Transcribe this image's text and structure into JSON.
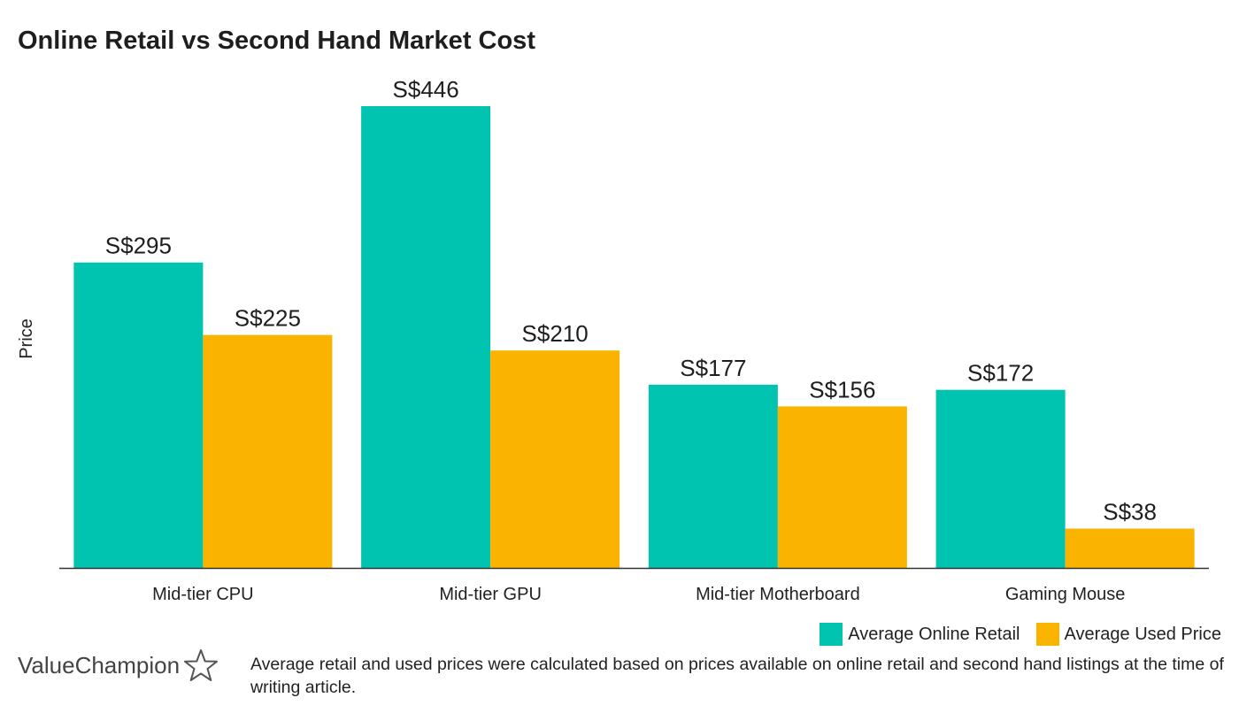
{
  "chart_data": {
    "type": "bar",
    "title": "Online Retail vs Second Hand Market Cost",
    "ylabel": "Price",
    "xlabel": "",
    "categories": [
      "Mid-tier CPU",
      "Mid-tier GPU",
      "Mid-tier Motherboard",
      "Gaming Mouse"
    ],
    "series": [
      {
        "name": "Average Online Retail",
        "values": [
          295,
          446,
          177,
          172
        ],
        "labels": [
          "S$295",
          "S$446",
          "S$177",
          "S$172"
        ],
        "color": "#00c4b0"
      },
      {
        "name": "Average Used Price",
        "values": [
          225,
          210,
          156,
          38
        ],
        "labels": [
          "S$225",
          "S$210",
          "S$156",
          "S$38"
        ],
        "color": "#fab400"
      }
    ],
    "ylim": [
      0,
      446
    ],
    "grid": false,
    "legend": "bottom-right"
  },
  "branding": {
    "logo_text": "ValueChampion",
    "logo_icon": "star-outline-icon"
  },
  "footnote": "Average retail and used prices were calculated based on prices available on online retail and second hand listings at the time of writing article."
}
